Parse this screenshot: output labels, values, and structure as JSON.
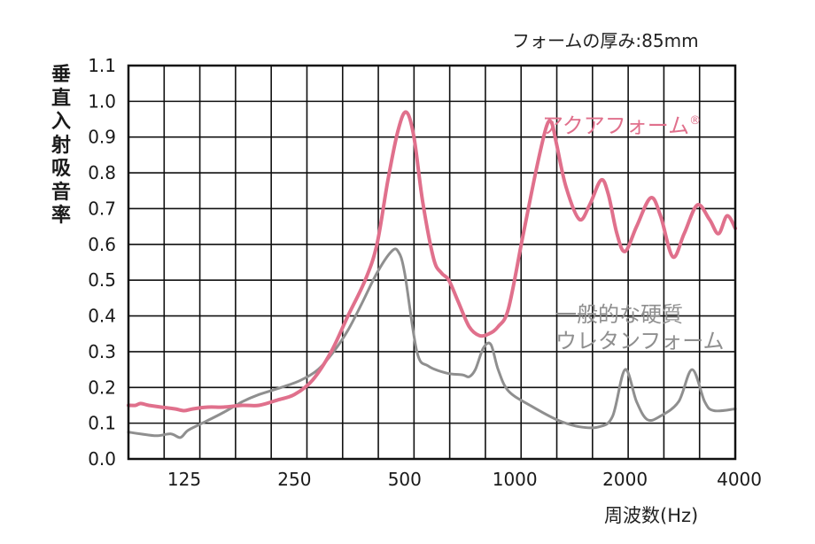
{
  "chart_data": {
    "type": "line",
    "subtitle": "フォームの厚み:85mm",
    "xlabel": "周波数(Hz)",
    "ylabel": "垂直入射吸音率",
    "x_scale": "log2",
    "xlim": [
      88,
      4000
    ],
    "ylim": [
      0,
      1.1
    ],
    "x_ticks": [
      125,
      250,
      500,
      1000,
      2000,
      4000
    ],
    "x_tick_labels": [
      "125",
      "250",
      "500",
      "1000",
      "2000",
      "4000"
    ],
    "y_ticks": [
      0.0,
      0.1,
      0.2,
      0.3,
      0.4,
      0.5,
      0.6,
      0.7,
      0.8,
      0.9,
      1.0,
      1.1
    ],
    "y_tick_labels": [
      "0.0",
      "0.1",
      "0.2",
      "0.3",
      "0.4",
      "0.5",
      "0.6",
      "0.7",
      "0.8",
      "0.9",
      "1.0",
      "1.1"
    ],
    "grid": true,
    "series": [
      {
        "name": "アクアフォーム®",
        "color": "#e0708c",
        "points": [
          [
            88,
            0.15
          ],
          [
            92,
            0.15
          ],
          [
            95,
            0.155
          ],
          [
            100,
            0.15
          ],
          [
            108,
            0.145
          ],
          [
            118,
            0.14
          ],
          [
            125,
            0.135
          ],
          [
            132,
            0.14
          ],
          [
            145,
            0.145
          ],
          [
            160,
            0.145
          ],
          [
            180,
            0.15
          ],
          [
            200,
            0.15
          ],
          [
            225,
            0.165
          ],
          [
            250,
            0.18
          ],
          [
            280,
            0.22
          ],
          [
            315,
            0.3
          ],
          [
            350,
            0.4
          ],
          [
            390,
            0.5
          ],
          [
            420,
            0.6
          ],
          [
            450,
            0.78
          ],
          [
            480,
            0.92
          ],
          [
            505,
            0.97
          ],
          [
            530,
            0.9
          ],
          [
            560,
            0.72
          ],
          [
            600,
            0.56
          ],
          [
            630,
            0.52
          ],
          [
            660,
            0.5
          ],
          [
            700,
            0.44
          ],
          [
            750,
            0.37
          ],
          [
            800,
            0.345
          ],
          [
            850,
            0.35
          ],
          [
            900,
            0.37
          ],
          [
            960,
            0.42
          ],
          [
            1050,
            0.62
          ],
          [
            1150,
            0.82
          ],
          [
            1220,
            0.93
          ],
          [
            1260,
            0.94
          ],
          [
            1300,
            0.88
          ],
          [
            1380,
            0.76
          ],
          [
            1500,
            0.67
          ],
          [
            1600,
            0.71
          ],
          [
            1720,
            0.78
          ],
          [
            1800,
            0.74
          ],
          [
            1900,
            0.63
          ],
          [
            2000,
            0.58
          ],
          [
            2150,
            0.65
          ],
          [
            2350,
            0.73
          ],
          [
            2500,
            0.68
          ],
          [
            2700,
            0.565
          ],
          [
            2900,
            0.63
          ],
          [
            3150,
            0.71
          ],
          [
            3400,
            0.67
          ],
          [
            3600,
            0.63
          ],
          [
            3800,
            0.68
          ],
          [
            4000,
            0.645
          ]
        ]
      },
      {
        "name": "一般的な硬質ウレタンフォーム",
        "color": "#8f8f8f",
        "points": [
          [
            88,
            0.075
          ],
          [
            95,
            0.07
          ],
          [
            105,
            0.065
          ],
          [
            115,
            0.07
          ],
          [
            122,
            0.06
          ],
          [
            128,
            0.08
          ],
          [
            140,
            0.1
          ],
          [
            160,
            0.13
          ],
          [
            180,
            0.16
          ],
          [
            200,
            0.18
          ],
          [
            230,
            0.2
          ],
          [
            260,
            0.22
          ],
          [
            290,
            0.25
          ],
          [
            320,
            0.3
          ],
          [
            350,
            0.36
          ],
          [
            380,
            0.43
          ],
          [
            420,
            0.52
          ],
          [
            460,
            0.58
          ],
          [
            480,
            0.58
          ],
          [
            500,
            0.52
          ],
          [
            540,
            0.3
          ],
          [
            580,
            0.26
          ],
          [
            650,
            0.24
          ],
          [
            720,
            0.235
          ],
          [
            750,
            0.23
          ],
          [
            780,
            0.25
          ],
          [
            820,
            0.31
          ],
          [
            860,
            0.32
          ],
          [
            900,
            0.25
          ],
          [
            960,
            0.19
          ],
          [
            1100,
            0.15
          ],
          [
            1300,
            0.11
          ],
          [
            1500,
            0.09
          ],
          [
            1700,
            0.09
          ],
          [
            1850,
            0.12
          ],
          [
            2000,
            0.25
          ],
          [
            2150,
            0.16
          ],
          [
            2300,
            0.11
          ],
          [
            2500,
            0.12
          ],
          [
            2800,
            0.16
          ],
          [
            3050,
            0.25
          ],
          [
            3300,
            0.16
          ],
          [
            3500,
            0.135
          ],
          [
            4000,
            0.14
          ]
        ]
      }
    ],
    "annotations": [
      {
        "text": "アクアフォーム",
        "sup": "®",
        "series": 0
      },
      {
        "lines": [
          "一般的な硬質",
          "ウレタンフォーム"
        ],
        "series": 1
      }
    ]
  }
}
